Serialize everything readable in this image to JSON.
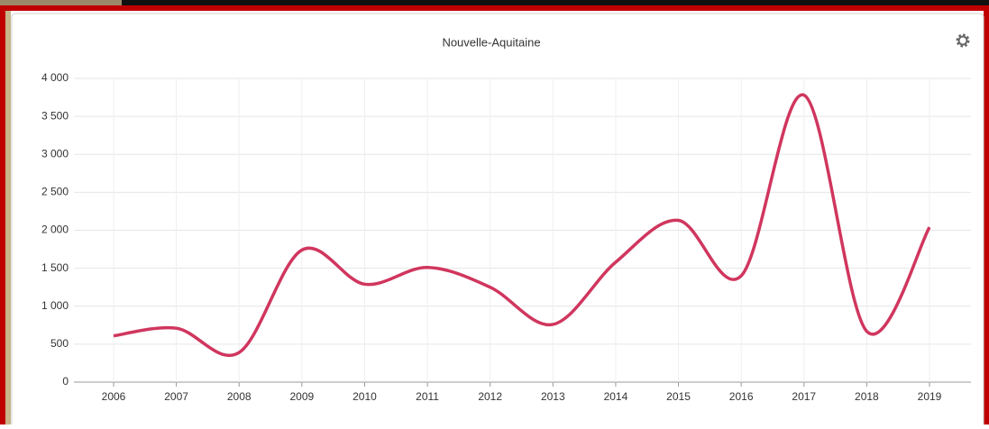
{
  "chart_data": {
    "type": "line",
    "title": "Nouvelle-Aquitaine",
    "categories": [
      "2006",
      "2007",
      "2008",
      "2009",
      "2010",
      "2011",
      "2012",
      "2013",
      "2014",
      "2015",
      "2016",
      "2017",
      "2018",
      "2019"
    ],
    "series": [
      {
        "color": "#d0365e",
        "values": [
          610,
          710,
          390,
          1740,
          1290,
          1510,
          1250,
          760,
          1580,
          2130,
          1400,
          3780,
          670,
          2040
        ]
      }
    ],
    "ylim": [
      0,
      4000
    ],
    "yticks": [
      0,
      500,
      {
        "value": 1000,
        "label": "1 000"
      },
      {
        "value": 1500,
        "label": "1 500"
      },
      {
        "value": 2000,
        "label": "2 000"
      },
      {
        "value": 2500,
        "label": "2 500"
      },
      {
        "value": 3000,
        "label": "3 000"
      },
      {
        "value": 3500,
        "label": "3 500"
      },
      {
        "value": 4000,
        "label": "4 000"
      }
    ],
    "grid": true
  }
}
